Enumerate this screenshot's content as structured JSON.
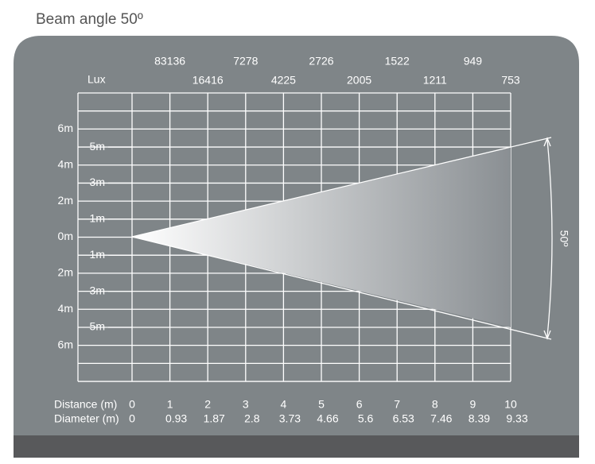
{
  "title": "Beam angle 50º",
  "lux": {
    "label": "Lux",
    "values": [
      83136,
      16416,
      7278,
      4225,
      2726,
      2005,
      1522,
      1211,
      949,
      753
    ]
  },
  "y_axis": {
    "outer": [
      "6m",
      "4m",
      "2m",
      "0m",
      "2m",
      "4m",
      "6m"
    ],
    "inner": [
      "5m",
      "3m",
      "1m",
      "1m",
      "3m",
      "5m"
    ]
  },
  "angle_label": "50º",
  "distance": {
    "label": "Distance (m)",
    "values": [
      0,
      1,
      2,
      3,
      4,
      5,
      6,
      7,
      8,
      9,
      10
    ]
  },
  "diameter": {
    "label": "Diameter (m)",
    "values": [
      0,
      0.93,
      1.87,
      2.8,
      3.73,
      4.66,
      5.6,
      6.53,
      7.46,
      8.39,
      9.33
    ]
  }
}
